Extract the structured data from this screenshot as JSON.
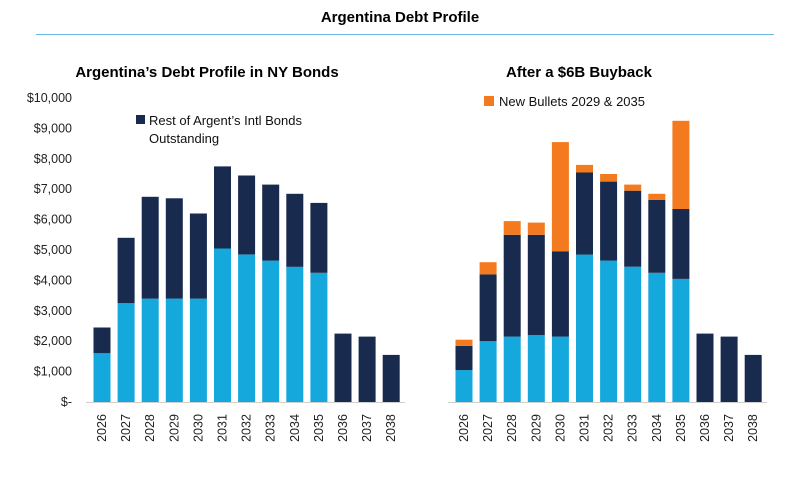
{
  "page_title": "Argentina Debt Profile",
  "colors": {
    "ny_bonds": "#14a8dc",
    "rest_bonds": "#182a4e",
    "new_bullets": "#f47a1f",
    "rule": "#69b9e0"
  },
  "chart_data": [
    {
      "type": "bar",
      "stacked": true,
      "title": "Argentina’s Debt Profile in NY  Bonds",
      "xlabel": "",
      "ylabel": "",
      "ylim": [
        0,
        10000
      ],
      "yticks": [
        0,
        1000,
        2000,
        3000,
        4000,
        5000,
        6000,
        7000,
        8000,
        9000,
        10000
      ],
      "ytick_labels": [
        "$-",
        "$1,000",
        "$2,000",
        "$3,000",
        "$4,000",
        "$5,000",
        "$6,000",
        "$7,000",
        "$8,000",
        "$9,000",
        "$10,000"
      ],
      "categories": [
        "2026",
        "2027",
        "2028",
        "2029",
        "2030",
        "2031",
        "2032",
        "2033",
        "2034",
        "2035",
        "2036",
        "2037",
        "2038"
      ],
      "legend": {
        "position": "top-center",
        "entries": [
          {
            "series": "Rest of Argent’s Intl Bonds Outstanding",
            "lines": [
              "Rest of Argent’s Intl Bonds",
              "Outstanding"
            ]
          }
        ]
      },
      "series": [
        {
          "name": "NY Bonds",
          "color_key": "ny_bonds",
          "values": [
            1600,
            3250,
            3400,
            3400,
            3400,
            5050,
            4850,
            4650,
            4450,
            4250,
            0,
            0,
            0
          ]
        },
        {
          "name": "Rest of Argent’s Intl Bonds Outstanding",
          "color_key": "rest_bonds",
          "values": [
            850,
            2150,
            3350,
            3300,
            2800,
            2700,
            2600,
            2500,
            2400,
            2300,
            2250,
            2150,
            1550
          ]
        },
        {
          "name": "New Bullets 2029 & 2035",
          "color_key": "new_bullets",
          "values": [
            0,
            0,
            0,
            0,
            0,
            0,
            0,
            0,
            0,
            0,
            0,
            0,
            0
          ]
        }
      ]
    },
    {
      "type": "bar",
      "stacked": true,
      "title": "After a $6B Buyback",
      "xlabel": "",
      "ylabel": "",
      "ylim": [
        0,
        10000
      ],
      "categories": [
        "2026",
        "2027",
        "2028",
        "2029",
        "2030",
        "2031",
        "2032",
        "2033",
        "2034",
        "2035",
        "2036",
        "2037",
        "2038"
      ],
      "legend": {
        "position": "top-left",
        "entries": [
          {
            "series": "New Bullets 2029 & 2035",
            "lines": [
              "New Bullets 2029 & 2035"
            ]
          }
        ]
      },
      "series": [
        {
          "name": "NY Bonds",
          "color_key": "ny_bonds",
          "values": [
            1050,
            2000,
            2150,
            2200,
            2150,
            4850,
            4650,
            4450,
            4250,
            4050,
            0,
            0,
            0
          ]
        },
        {
          "name": "Rest of Argent’s Intl Bonds Outstanding",
          "color_key": "rest_bonds",
          "values": [
            800,
            2200,
            3350,
            3300,
            2800,
            2700,
            2600,
            2500,
            2400,
            2300,
            2250,
            2150,
            1550
          ]
        },
        {
          "name": "New Bullets 2029 & 2035",
          "color_key": "new_bullets",
          "values": [
            200,
            400,
            450,
            400,
            3600,
            250,
            250,
            200,
            200,
            2900,
            0,
            0,
            0
          ]
        }
      ]
    }
  ]
}
